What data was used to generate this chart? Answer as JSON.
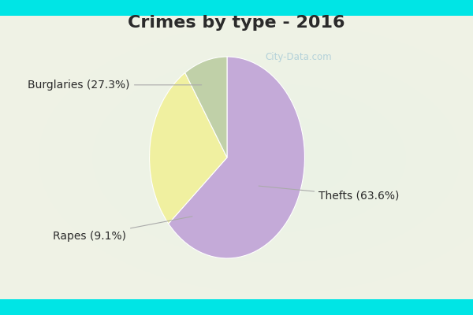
{
  "title": "Crimes by type - 2016",
  "title_fontsize": 16,
  "title_color": "#2a2a2a",
  "slices": [
    {
      "label": "Thefts",
      "pct": 63.6,
      "color": "#c4aad8"
    },
    {
      "label": "Burglaries",
      "pct": 27.3,
      "color": "#f0f0a0"
    },
    {
      "label": "Rapes",
      "pct": 9.1,
      "color": "#c0d0a8"
    }
  ],
  "label_fontsize": 10,
  "label_color": "#2a2a2a",
  "bg_cyan": "#00e5e5",
  "bg_inner": "#d0ece0",
  "watermark": "City-Data.com",
  "watermark_color": "#aaccd8",
  "startangle": 90,
  "line_color": "#aaaaaa"
}
